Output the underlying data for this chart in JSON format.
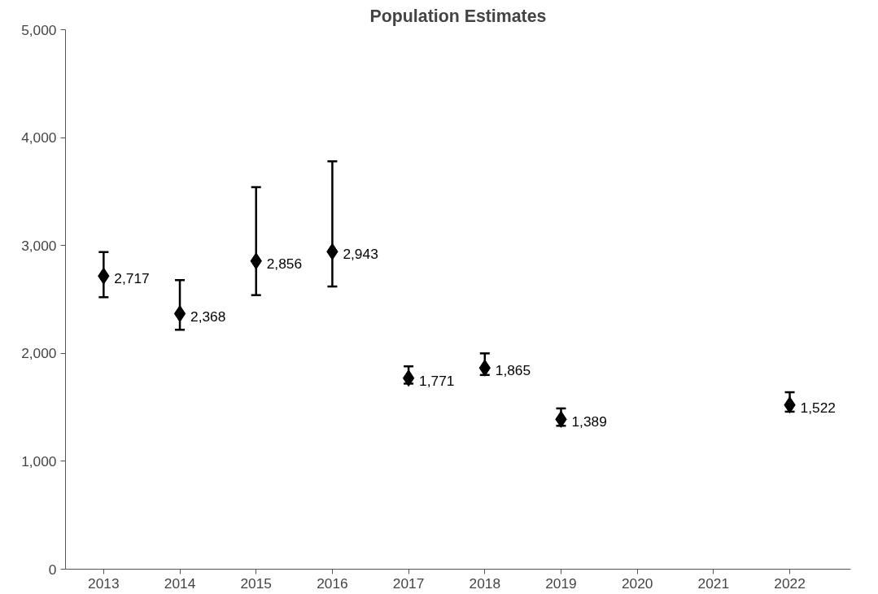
{
  "chart_data": {
    "type": "scatter",
    "title": "Population Estimates",
    "categories": [
      "2013",
      "2014",
      "2015",
      "2016",
      "2017",
      "2018",
      "2019",
      "2020",
      "2021",
      "2022"
    ],
    "values": [
      2717,
      2368,
      2856,
      2943,
      1771,
      1865,
      1389,
      null,
      null,
      1522
    ],
    "errors": [
      [
        2520,
        2940
      ],
      [
        2220,
        2680
      ],
      [
        2540,
        3540
      ],
      [
        2620,
        3780
      ],
      [
        1720,
        1880
      ],
      [
        1800,
        2000
      ],
      [
        1330,
        1490
      ],
      null,
      null,
      [
        1460,
        1640
      ]
    ],
    "value_labels": [
      "2,717",
      "2,368",
      "2,856",
      "2,943",
      "1,771",
      "1,865",
      "1,389",
      null,
      null,
      "1,522"
    ],
    "color": "#000000",
    "marker": "diamond",
    "grid": false,
    "ylim": [
      0,
      5000
    ],
    "yticks": [
      0,
      {
        "value": 1000,
        "label": "1,000"
      },
      {
        "value": 2000,
        "label": "2,000"
      },
      {
        "value": 3000,
        "label": "3,000"
      },
      {
        "value": 4000,
        "label": "4,000"
      },
      {
        "value": 5000,
        "label": "5,000"
      }
    ]
  }
}
